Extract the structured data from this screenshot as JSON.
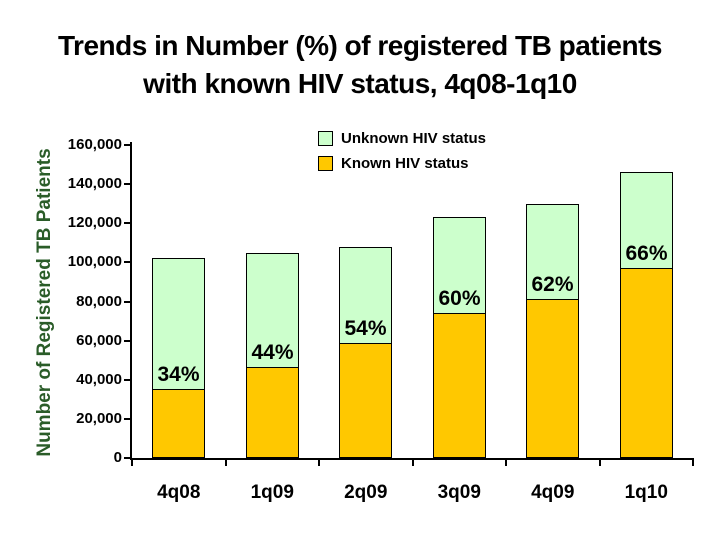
{
  "slide": {
    "title_line1": "Trends in Number (%) of registered TB patients",
    "title_line2": "with known HIV status, 4q08-1q10"
  },
  "chart_data": {
    "type": "bar",
    "stacked": true,
    "title": "Trends in Number (%) of registered TB patients with known HIV status, 4q08-1q10",
    "categories": [
      "4q08",
      "1q09",
      "2q09",
      "3q09",
      "4q09",
      "1q10"
    ],
    "series": [
      {
        "name": "Known HIV status",
        "color": "#FFC800",
        "values": [
          34680,
          46200,
          58320,
          73800,
          80600,
          96360
        ]
      },
      {
        "name": "Unknown HIV status",
        "color": "#CCFFCC",
        "values": [
          67320,
          58800,
          49680,
          49200,
          49400,
          49640
        ]
      }
    ],
    "totals": [
      102000,
      105000,
      108000,
      123000,
      130000,
      146000
    ],
    "percent_known_labels": [
      "34%",
      "44%",
      "54%",
      "60%",
      "62%",
      "66%"
    ],
    "ylabel": "Number of Registered TB Patients",
    "xlabel": "",
    "ylim": [
      0,
      160000
    ],
    "ytick_interval": 20000,
    "ytick_labels_top_to_bottom": [
      "160,000",
      "140,000",
      "120,000",
      "100,000",
      "80,000",
      "60,000",
      "40,000",
      "20,000",
      "0"
    ],
    "legend_position": "top-center",
    "grid": false,
    "colors": {
      "known_fill": "#FFC800",
      "unknown_fill": "#CCFFCC",
      "bar_border": "#000000",
      "axis": "#000000",
      "ylabel_text": "#2a5c28",
      "label_text": "#000000",
      "background": "#ffffff"
    }
  }
}
